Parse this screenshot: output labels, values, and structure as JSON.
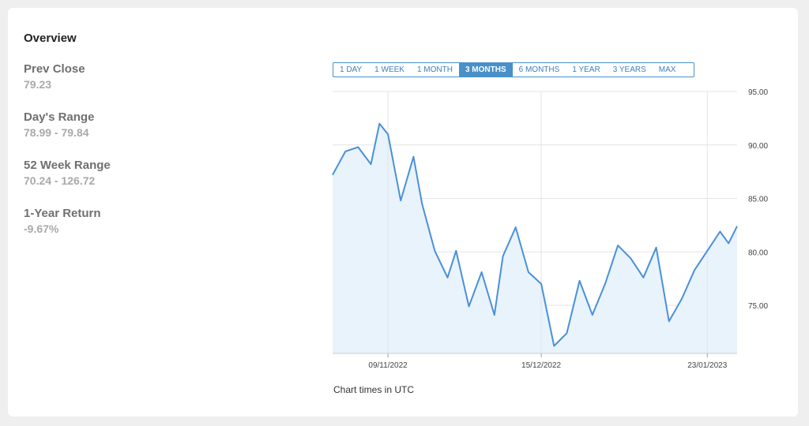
{
  "overview": {
    "title": "Overview",
    "stats": [
      {
        "label": "Prev Close",
        "value": "79.23"
      },
      {
        "label": "Day's Range",
        "value": "78.99 - 79.84"
      },
      {
        "label": "52 Week Range",
        "value": "70.24 - 126.72"
      },
      {
        "label": "1-Year Return",
        "value": "-9.67%"
      }
    ]
  },
  "range_buttons": [
    "1 DAY",
    "1 WEEK",
    "1 MONTH",
    "3 MONTHS",
    "6 MONTHS",
    "1 YEAR",
    "3 YEARS",
    "MAX"
  ],
  "active_range": "3 MONTHS",
  "footnote": "Chart times in UTC",
  "colors": {
    "line": "#4a90d9",
    "fill": "#e8f3fb",
    "active": "#4a90c8"
  },
  "chart_data": {
    "type": "area",
    "ylim": [
      70.5,
      95
    ],
    "y_ticks": [
      "95.00",
      "90.00",
      "85.00",
      "80.00",
      "75.00"
    ],
    "x_ticks": [
      "09/11/2022",
      "15/12/2022",
      "23/01/2023"
    ],
    "grid": true,
    "series": [
      {
        "x": [
          "27/10/2022",
          "30/10/2022",
          "02/11/2022",
          "05/11/2022",
          "07/11/2022",
          "09/11/2022",
          "12/11/2022",
          "15/11/2022",
          "17/11/2022",
          "20/11/2022",
          "23/11/2022",
          "25/11/2022",
          "28/11/2022",
          "01/12/2022",
          "04/12/2022",
          "06/12/2022",
          "09/12/2022",
          "12/12/2022",
          "15/12/2022",
          "18/12/2022",
          "21/12/2022",
          "24/12/2022",
          "27/12/2022",
          "30/12/2022",
          "02/01/2023",
          "05/01/2023",
          "08/01/2023",
          "11/01/2023",
          "14/01/2023",
          "17/01/2023",
          "20/01/2023",
          "23/01/2023",
          "26/01/2023",
          "28/01/2023",
          "30/01/2023"
        ],
        "values": [
          87.2,
          89.4,
          89.8,
          88.2,
          92.0,
          91.0,
          84.8,
          88.9,
          84.5,
          80.1,
          77.6,
          80.1,
          74.9,
          78.1,
          74.1,
          79.6,
          82.3,
          78.1,
          77.0,
          71.2,
          72.4,
          77.3,
          74.1,
          77.0,
          80.6,
          79.4,
          77.6,
          80.4,
          73.5,
          75.6,
          78.3,
          80.1,
          81.9,
          80.8,
          82.4
        ]
      }
    ]
  }
}
